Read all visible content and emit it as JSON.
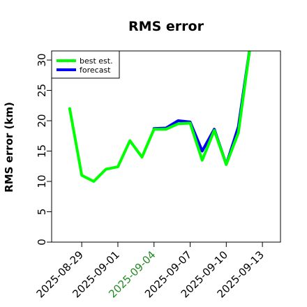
{
  "chart_data": {
    "type": "line",
    "title": "RMS error",
    "xlabel": "",
    "ylabel": "RMS error (km)",
    "ylim": [
      0,
      31.5
    ],
    "y_ticks": [
      0,
      5,
      10,
      15,
      20,
      25,
      30
    ],
    "x_ticks": [
      {
        "label": "2025-08-29",
        "date": "2025-08-29",
        "color": "#000000"
      },
      {
        "label": "2025-09-01",
        "date": "2025-09-01",
        "color": "#000000"
      },
      {
        "label": "2025-09-04",
        "date": "2025-09-04",
        "color": "#228B22"
      },
      {
        "label": "2025-09-07",
        "date": "2025-09-07",
        "color": "#000000"
      },
      {
        "label": "2025-09-10",
        "date": "2025-09-10",
        "color": "#000000"
      },
      {
        "label": "2025-09-13",
        "date": "2025-09-13",
        "color": "#000000"
      }
    ],
    "xlim": [
      "2025-08-26T12:00",
      "2025-09-14T12:00"
    ],
    "grid": false,
    "legend_position": "top-left",
    "series": [
      {
        "name": "forecast",
        "color": "#0000ff",
        "points": [
          {
            "x": "2025-09-04",
            "y": 18.7
          },
          {
            "x": "2025-09-05",
            "y": 18.8
          },
          {
            "x": "2025-09-06",
            "y": 20.0
          },
          {
            "x": "2025-09-07",
            "y": 19.8
          },
          {
            "x": "2025-09-08",
            "y": 15.0
          },
          {
            "x": "2025-09-09",
            "y": 18.6
          },
          {
            "x": "2025-09-10",
            "y": 12.8
          },
          {
            "x": "2025-09-11",
            "y": 19.0
          },
          {
            "x": "2025-09-12",
            "y": 32.5
          }
        ]
      },
      {
        "name": "best est.",
        "color": "#00ff00",
        "points": [
          {
            "x": "2025-08-28",
            "y": 22.0
          },
          {
            "x": "2025-08-29",
            "y": 11.0
          },
          {
            "x": "2025-08-30",
            "y": 10.0
          },
          {
            "x": "2025-08-31",
            "y": 12.0
          },
          {
            "x": "2025-09-01",
            "y": 12.4
          },
          {
            "x": "2025-09-02",
            "y": 16.7
          },
          {
            "x": "2025-09-03",
            "y": 14.0
          },
          {
            "x": "2025-09-04",
            "y": 18.6
          },
          {
            "x": "2025-09-05",
            "y": 18.6
          },
          {
            "x": "2025-09-06",
            "y": 19.5
          },
          {
            "x": "2025-09-07",
            "y": 19.6
          },
          {
            "x": "2025-09-08",
            "y": 13.5
          },
          {
            "x": "2025-09-09",
            "y": 18.4
          },
          {
            "x": "2025-09-10",
            "y": 12.8
          },
          {
            "x": "2025-09-11",
            "y": 18.0
          },
          {
            "x": "2025-09-12",
            "y": 32.5
          }
        ]
      }
    ],
    "legend": [
      {
        "name": "best est.",
        "color": "#00ff00"
      },
      {
        "name": "forecast",
        "color": "#0000ff"
      }
    ]
  }
}
